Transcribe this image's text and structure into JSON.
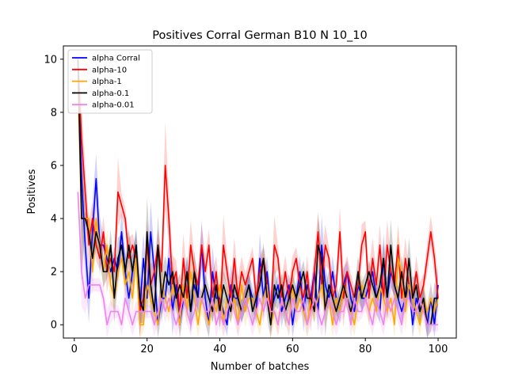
{
  "chart_data": {
    "type": "line",
    "title": "Positives Corral German B10 N 10_10",
    "xlabel": "Number of batches",
    "ylabel": "Positives",
    "xlim": [
      -3,
      105
    ],
    "ylim": [
      -0.5,
      10.5
    ],
    "xticks": [
      0,
      20,
      40,
      60,
      80,
      100
    ],
    "yticks": [
      0,
      2,
      4,
      6,
      8,
      10
    ],
    "grid": false,
    "legend_position": "top-left",
    "x": [
      1,
      2,
      3,
      4,
      5,
      6,
      7,
      8,
      9,
      10,
      11,
      12,
      13,
      14,
      15,
      16,
      17,
      18,
      19,
      20,
      21,
      22,
      23,
      24,
      25,
      26,
      27,
      28,
      29,
      30,
      31,
      32,
      33,
      34,
      35,
      36,
      37,
      38,
      39,
      40,
      41,
      42,
      43,
      44,
      45,
      46,
      47,
      48,
      49,
      50,
      51,
      52,
      53,
      54,
      55,
      56,
      57,
      58,
      59,
      60,
      61,
      62,
      63,
      64,
      65,
      66,
      67,
      68,
      69,
      70,
      71,
      72,
      73,
      74,
      75,
      76,
      77,
      78,
      79,
      80,
      81,
      82,
      83,
      84,
      85,
      86,
      87,
      88,
      89,
      90,
      91,
      92,
      93,
      94,
      95,
      96,
      97,
      98,
      99,
      100
    ],
    "series": [
      {
        "name": "alpha Corral",
        "color": "#0000ff",
        "values": [
          10,
          5.5,
          3,
          1,
          3.5,
          5.5,
          3,
          3,
          2.5,
          2,
          2.5,
          2,
          3.5,
          2,
          1,
          2,
          3,
          0.5,
          2.5,
          1,
          3.5,
          2,
          0,
          1,
          1,
          2.5,
          0.5,
          1.5,
          0,
          1,
          2,
          0.5,
          1.5,
          1,
          3,
          1,
          0,
          2,
          1,
          1,
          0.5,
          0,
          1.5,
          1,
          1,
          0.5,
          1,
          1.5,
          1,
          0.5,
          2.5,
          1,
          2,
          0.5,
          1,
          1.5,
          0.5,
          1,
          1.5,
          0,
          1,
          2,
          0.5,
          1.5,
          1,
          2,
          0.5,
          3,
          1.5,
          1,
          2,
          1,
          0.5,
          1.5,
          2,
          1,
          0.5,
          1.5,
          1,
          1,
          1.5,
          2,
          1,
          0.5,
          2.5,
          1,
          2,
          1.5,
          1,
          0.5,
          1,
          1.5,
          0,
          1,
          0.5,
          1,
          0,
          1,
          0,
          1.5
        ]
      },
      {
        "name": "alpha-10",
        "color": "#ff0000",
        "values": [
          10,
          7,
          5,
          3,
          4,
          3,
          2.5,
          3.5,
          2,
          2.5,
          2,
          5,
          4.5,
          4,
          2.5,
          3,
          2.5,
          0.5,
          1,
          3,
          1.5,
          2,
          3,
          2,
          6,
          4,
          1.5,
          2,
          0.5,
          2.5,
          1,
          3,
          2,
          1.5,
          3,
          2,
          3,
          1,
          2,
          0.5,
          3,
          2,
          1,
          2.5,
          1,
          2,
          1.5,
          2,
          2.5,
          1,
          2,
          2.5,
          1.5,
          0.5,
          3,
          2.5,
          1,
          2,
          1,
          2,
          2.5,
          1.5,
          1,
          2,
          0.5,
          2,
          3.5,
          1.5,
          3,
          2.5,
          1,
          1.5,
          3.5,
          1,
          2,
          1.5,
          1,
          1.5,
          3,
          3.5,
          1,
          2.5,
          1.5,
          3,
          1,
          3,
          2,
          1.5,
          3,
          1,
          2.5,
          1.5,
          1,
          2,
          1,
          1.5,
          2.5,
          3.5,
          2.5,
          1
        ]
      },
      {
        "name": "alpha-1",
        "color": "#ffa500",
        "values": [
          9,
          4,
          4,
          4,
          2,
          4,
          3,
          2,
          3,
          1.5,
          1,
          2,
          2.5,
          1.5,
          2,
          1,
          2.5,
          0,
          0,
          1.5,
          1,
          0.5,
          0,
          1.5,
          1,
          0.5,
          1.5,
          1,
          0,
          1.5,
          0.5,
          2,
          1,
          0,
          1,
          0.5,
          0,
          1,
          0.5,
          1.5,
          0,
          1,
          0.5,
          1,
          0,
          1.5,
          0.5,
          1,
          1,
          0.5,
          0,
          1,
          1.5,
          0,
          0.5,
          0,
          1,
          0.5,
          0,
          1.5,
          0.5,
          1,
          0.5,
          0,
          1,
          0.5,
          1,
          1.5,
          0.5,
          1,
          0,
          1,
          0.5,
          1.5,
          1,
          0.5,
          0,
          1,
          1.5,
          1,
          0.5,
          1,
          0.5,
          1.5,
          1,
          0.5,
          1,
          0,
          2.5,
          2,
          0.5,
          1.5,
          1,
          0.5,
          0,
          1,
          0.5,
          1,
          0.5,
          1
        ]
      },
      {
        "name": "alpha-0.1",
        "color": "#000000",
        "values": [
          10,
          4,
          4,
          3.5,
          2.5,
          3.5,
          3,
          2,
          2,
          3,
          1,
          2.5,
          3,
          2,
          3,
          2,
          3,
          1,
          0.5,
          3.5,
          1.5,
          0.5,
          3,
          1,
          2,
          1.5,
          2,
          1,
          1.5,
          1,
          2,
          0.5,
          2,
          1,
          1,
          1.5,
          1,
          0.5,
          1.5,
          0.5,
          1.5,
          1,
          0.5,
          1.5,
          1,
          0.5,
          1,
          1.5,
          0.5,
          1,
          1.5,
          2.5,
          1,
          0,
          1.5,
          1,
          1.5,
          0.5,
          1,
          1.5,
          1,
          1.5,
          2,
          1,
          1,
          0.5,
          3,
          2.5,
          0.5,
          1.5,
          1,
          0.5,
          1,
          1.5,
          1,
          0.5,
          1,
          2,
          1,
          1.5,
          2,
          1.5,
          1,
          1.5,
          2.5,
          1,
          3,
          1.5,
          1,
          2,
          1,
          2.5,
          1,
          1.5,
          0.5,
          1,
          0,
          0,
          1,
          1
        ]
      },
      {
        "name": "alpha-0.01",
        "color": "#ee82ee",
        "values": [
          5,
          2,
          1,
          1.5,
          1.5,
          1.5,
          1.5,
          1,
          0,
          0.5,
          0.5,
          0.5,
          0,
          1,
          0.5,
          0,
          0.5,
          0.5,
          0.5,
          0.5,
          0.5,
          0,
          0.5,
          1,
          0.5,
          1,
          0.5,
          0,
          0.5,
          1,
          0.5,
          0,
          0.5,
          1,
          1,
          0.5,
          0.5,
          1,
          0,
          0.5,
          0,
          0.5,
          1,
          0.5,
          0,
          0.5,
          1,
          0.5,
          0,
          0.5,
          1,
          0.5,
          1,
          0.5,
          0.5,
          0,
          1,
          0.5,
          0,
          1,
          0.5,
          0.5,
          1,
          0,
          0.5,
          1,
          0.5,
          0,
          0.5,
          1,
          0.5,
          0,
          0.5,
          0.5,
          1,
          0,
          1,
          0.5,
          0.5,
          1,
          0.5,
          0,
          1,
          0.5,
          0,
          1,
          0.5,
          1,
          0.5,
          0,
          1,
          1,
          0.5,
          0.5,
          1,
          0.5,
          0,
          0,
          0,
          0
        ]
      }
    ]
  }
}
